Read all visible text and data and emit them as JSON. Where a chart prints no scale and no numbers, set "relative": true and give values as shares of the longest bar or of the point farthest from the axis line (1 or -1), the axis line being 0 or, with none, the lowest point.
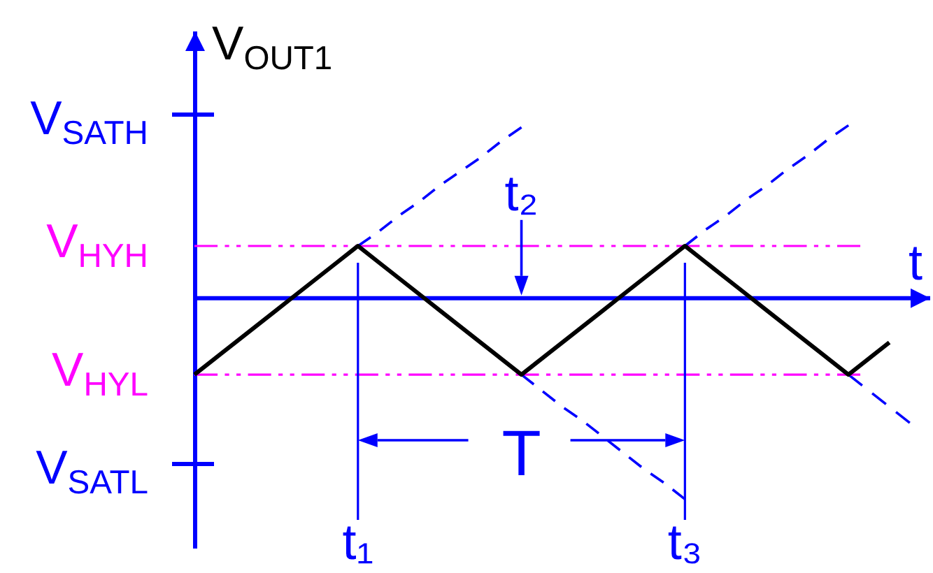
{
  "chart_data": {
    "type": "line",
    "relative": true,
    "xlabel": "t",
    "ylabel": "V$_{OUT1}$",
    "categories": [
      null,
      null,
      null,
      null,
      null,
      null,
      null,
      null,
      "t₁",
      null,
      null,
      null,
      null,
      null,
      null,
      null,
      "t₂",
      null,
      null,
      null,
      null,
      null,
      null,
      null,
      "t₃",
      null,
      null,
      null,
      null,
      null,
      null,
      null,
      null,
      null,
      null,
      null,
      null
    ],
    "series": [
      {
        "type": "line",
        "color": "#000000",
        "values": [
          -0.38,
          -0.3,
          -0.22,
          -0.14,
          -0.06,
          0.02,
          0.1,
          0.18,
          0.26,
          0.18,
          0.1,
          0.02,
          -0.06,
          -0.14,
          -0.22,
          -0.3,
          -0.38,
          -0.3,
          -0.22,
          -0.14,
          -0.06,
          0.02,
          0.1,
          0.18,
          0.26,
          0.18,
          0.1,
          0.02,
          -0.06,
          -0.14,
          -0.22,
          -0.3,
          -0.38,
          -0.3,
          -0.22,
          null,
          null
        ]
      },
      {
        "type": "line",
        "color": "#0000ff",
        "line_style": "dashed",
        "values": [
          null,
          null,
          null,
          null,
          null,
          null,
          null,
          null,
          0.26,
          0.33,
          0.41,
          0.48,
          0.56,
          0.63,
          0.7,
          0.78,
          0.85,
          null,
          null,
          null,
          null,
          null,
          null,
          null,
          null,
          null,
          null,
          null,
          null,
          null,
          null,
          null,
          null,
          null,
          null,
          null,
          null
        ]
      },
      {
        "type": "line",
        "color": "#0000ff",
        "line_style": "dashed",
        "values": [
          null,
          null,
          null,
          null,
          null,
          null,
          null,
          null,
          null,
          null,
          null,
          null,
          null,
          null,
          null,
          null,
          null,
          null,
          null,
          null,
          null,
          null,
          null,
          null,
          0.26,
          0.34,
          0.41,
          0.49,
          0.56,
          0.64,
          0.71,
          0.79,
          0.86,
          null,
          null,
          null,
          null
        ]
      },
      {
        "type": "line",
        "color": "#0000ff",
        "line_style": "dashed",
        "values": [
          null,
          null,
          null,
          null,
          null,
          null,
          null,
          null,
          null,
          null,
          null,
          null,
          null,
          null,
          null,
          null,
          -0.38,
          -0.46,
          -0.54,
          -0.61,
          -0.69,
          -0.77,
          -0.85,
          -0.92,
          -1,
          null,
          null,
          null,
          null,
          null,
          null,
          null,
          null,
          null,
          null,
          null,
          null
        ]
      },
      {
        "type": "line",
        "color": "#0000ff",
        "line_style": "dashed",
        "values": [
          null,
          null,
          null,
          null,
          null,
          null,
          null,
          null,
          null,
          null,
          null,
          null,
          null,
          null,
          null,
          null,
          null,
          null,
          null,
          null,
          null,
          null,
          null,
          null,
          null,
          null,
          null,
          null,
          null,
          null,
          null,
          null,
          -0.38,
          -0.46,
          -0.54,
          -0.62,
          null
        ]
      }
    ],
    "ref_lines": [
      {
        "axis": "y",
        "value": 0,
        "color": "#0000ff"
      },
      {
        "axis": "y",
        "value": 0.26,
        "label": "V$_{HYH}$",
        "color": "#ff00ff",
        "line_style": "dashed"
      },
      {
        "axis": "y",
        "value": -0.38,
        "label": "V$_{HYL}$",
        "color": "#ff00ff",
        "line_style": "dashed"
      },
      {
        "axis": "x",
        "value": "t₁",
        "color": "#0000ff"
      },
      {
        "axis": "x",
        "value": "t₃",
        "color": "#0000ff"
      }
    ],
    "annotations": [
      "V$_{SATH}$",
      "V$_{SATL}$",
      "T"
    ]
  }
}
